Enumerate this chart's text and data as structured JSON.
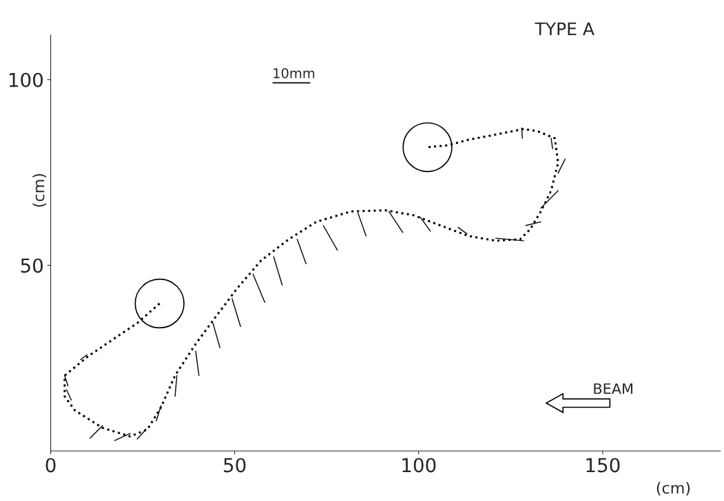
{
  "chart_data": {
    "type": "line",
    "title": "TYPE A",
    "xlabel": "(cm)",
    "ylabel": "(cm)",
    "annotations": [
      "10mm",
      "BEAM"
    ],
    "xlim": [
      0,
      182
    ],
    "ylim": [
      0,
      112
    ],
    "xticks": [
      0,
      50,
      100,
      150
    ],
    "yticks": [
      50,
      100
    ],
    "series": [
      {
        "line_style": "dotted",
        "color": "#000000",
        "x": [
          29.6,
          23.5,
          10.3,
          3.8,
          3.8,
          6.6,
          14.1,
          21.6,
          26.3,
          30.0,
          33.8,
          39.4,
          45.0,
          50.7,
          57.2,
          64.7,
          72.2,
          81.6,
          91.0,
          98.5,
          106.0,
          113.5,
          121.0,
          127.6,
          130.4,
          133.2,
          136.0,
          137.9,
          137.0,
          132.3,
          128.5,
          121.0,
          113.5,
          107.9,
          102.4
        ],
        "values": [
          39.7,
          34.4,
          25.6,
          20.3,
          14.7,
          10.9,
          6.2,
          3.9,
          5.8,
          11.8,
          20.3,
          28.8,
          36.3,
          43.8,
          51.3,
          57.0,
          61.7,
          64.5,
          64.8,
          63.5,
          60.7,
          57.9,
          56.6,
          57.0,
          59.8,
          64.5,
          70.1,
          77.6,
          84.2,
          86.1,
          86.7,
          85.2,
          83.8,
          82.3,
          81.8
        ]
      },
      {
        "type": "scatter",
        "marker": "circle",
        "color": "#000000",
        "x": [
          29.6,
          102.4
        ],
        "values": [
          39.7,
          81.8
        ]
      },
      {
        "type": "line",
        "color": "#000000",
        "x": [
          9.9,
          8.1
        ],
        "values": [
          25.9,
          24.6
        ]
      },
      {
        "type": "line",
        "color": "#000000",
        "x": [
          3.8,
          4.7
        ],
        "values": [
          20.3,
          17.5
        ]
      },
      {
        "type": "line",
        "color": "#000000",
        "x": [
          4.3,
          5.6
        ],
        "values": [
          16.5,
          13.7
        ]
      },
      {
        "type": "line",
        "color": "#000000",
        "x": [
          14.1,
          10.7
        ],
        "values": [
          6.8,
          3.4
        ]
      },
      {
        "type": "line",
        "color": "#000000",
        "x": [
          21.6,
          17.4
        ],
        "values": [
          4.7,
          2.8
        ]
      },
      {
        "type": "line",
        "color": "#000000",
        "x": [
          25.9,
          23.5
        ],
        "values": [
          5.8,
          3.2
        ]
      },
      {
        "type": "line",
        "color": "#000000",
        "x": [
          30.0,
          28.7
        ],
        "values": [
          12.2,
          8.1
        ]
      },
      {
        "type": "line",
        "color": "#000000",
        "x": [
          34.3,
          33.8
        ],
        "values": [
          20.3,
          14.7
        ]
      },
      {
        "type": "line",
        "color": "#000000",
        "x": [
          39.4,
          40.3
        ],
        "values": [
          26.9,
          20.3
        ]
      },
      {
        "type": "line",
        "color": "#000000",
        "x": [
          44.1,
          46.0
        ],
        "values": [
          34.4,
          27.8
        ]
      },
      {
        "type": "line",
        "color": "#000000",
        "x": [
          49.3,
          51.6
        ],
        "values": [
          41.0,
          33.5
        ]
      },
      {
        "type": "line",
        "color": "#000000",
        "x": [
          55.0,
          58.2
        ],
        "values": [
          47.6,
          40.0
        ]
      },
      {
        "type": "line",
        "color": "#000000",
        "x": [
          60.6,
          62.9
        ],
        "values": [
          52.3,
          44.7
        ]
      },
      {
        "type": "line",
        "color": "#000000",
        "x": [
          67.0,
          69.4
        ],
        "values": [
          57.0,
          50.4
        ]
      },
      {
        "type": "line",
        "color": "#000000",
        "x": [
          74.1,
          77.9
        ],
        "values": [
          60.7,
          54.1
        ]
      },
      {
        "type": "line",
        "color": "#000000",
        "x": [
          83.5,
          85.7
        ],
        "values": [
          64.1,
          57.9
        ]
      },
      {
        "type": "line",
        "color": "#000000",
        "x": [
          91.9,
          95.7
        ],
        "values": [
          64.5,
          58.8
        ]
      },
      {
        "type": "line",
        "color": "#000000",
        "x": [
          100.4,
          103.2
        ],
        "values": [
          63.0,
          59.2
        ]
      },
      {
        "type": "line",
        "color": "#000000",
        "x": [
          110.7,
          113.1
        ],
        "values": [
          60.2,
          58.5
        ]
      },
      {
        "type": "line",
        "color": "#000000",
        "x": [
          121.0,
          128.5
        ],
        "values": [
          57.3,
          56.6
        ]
      },
      {
        "type": "line",
        "color": "#000000",
        "x": [
          129.1,
          133.2
        ],
        "values": [
          60.7,
          61.7
        ]
      },
      {
        "type": "line",
        "color": "#000000",
        "x": [
          133.2,
          137.9
        ],
        "values": [
          65.4,
          70.1
        ]
      },
      {
        "type": "line",
        "color": "#000000",
        "x": [
          137.9,
          139.8
        ],
        "values": [
          74.8,
          78.6
        ]
      },
      {
        "type": "line",
        "color": "#000000",
        "x": [
          136.0,
          136.4
        ],
        "values": [
          84.2,
          81.4
        ]
      },
      {
        "type": "line",
        "color": "#000000",
        "x": [
          128.0,
          128.2
        ],
        "values": [
          87.0,
          84.2
        ]
      }
    ]
  }
}
